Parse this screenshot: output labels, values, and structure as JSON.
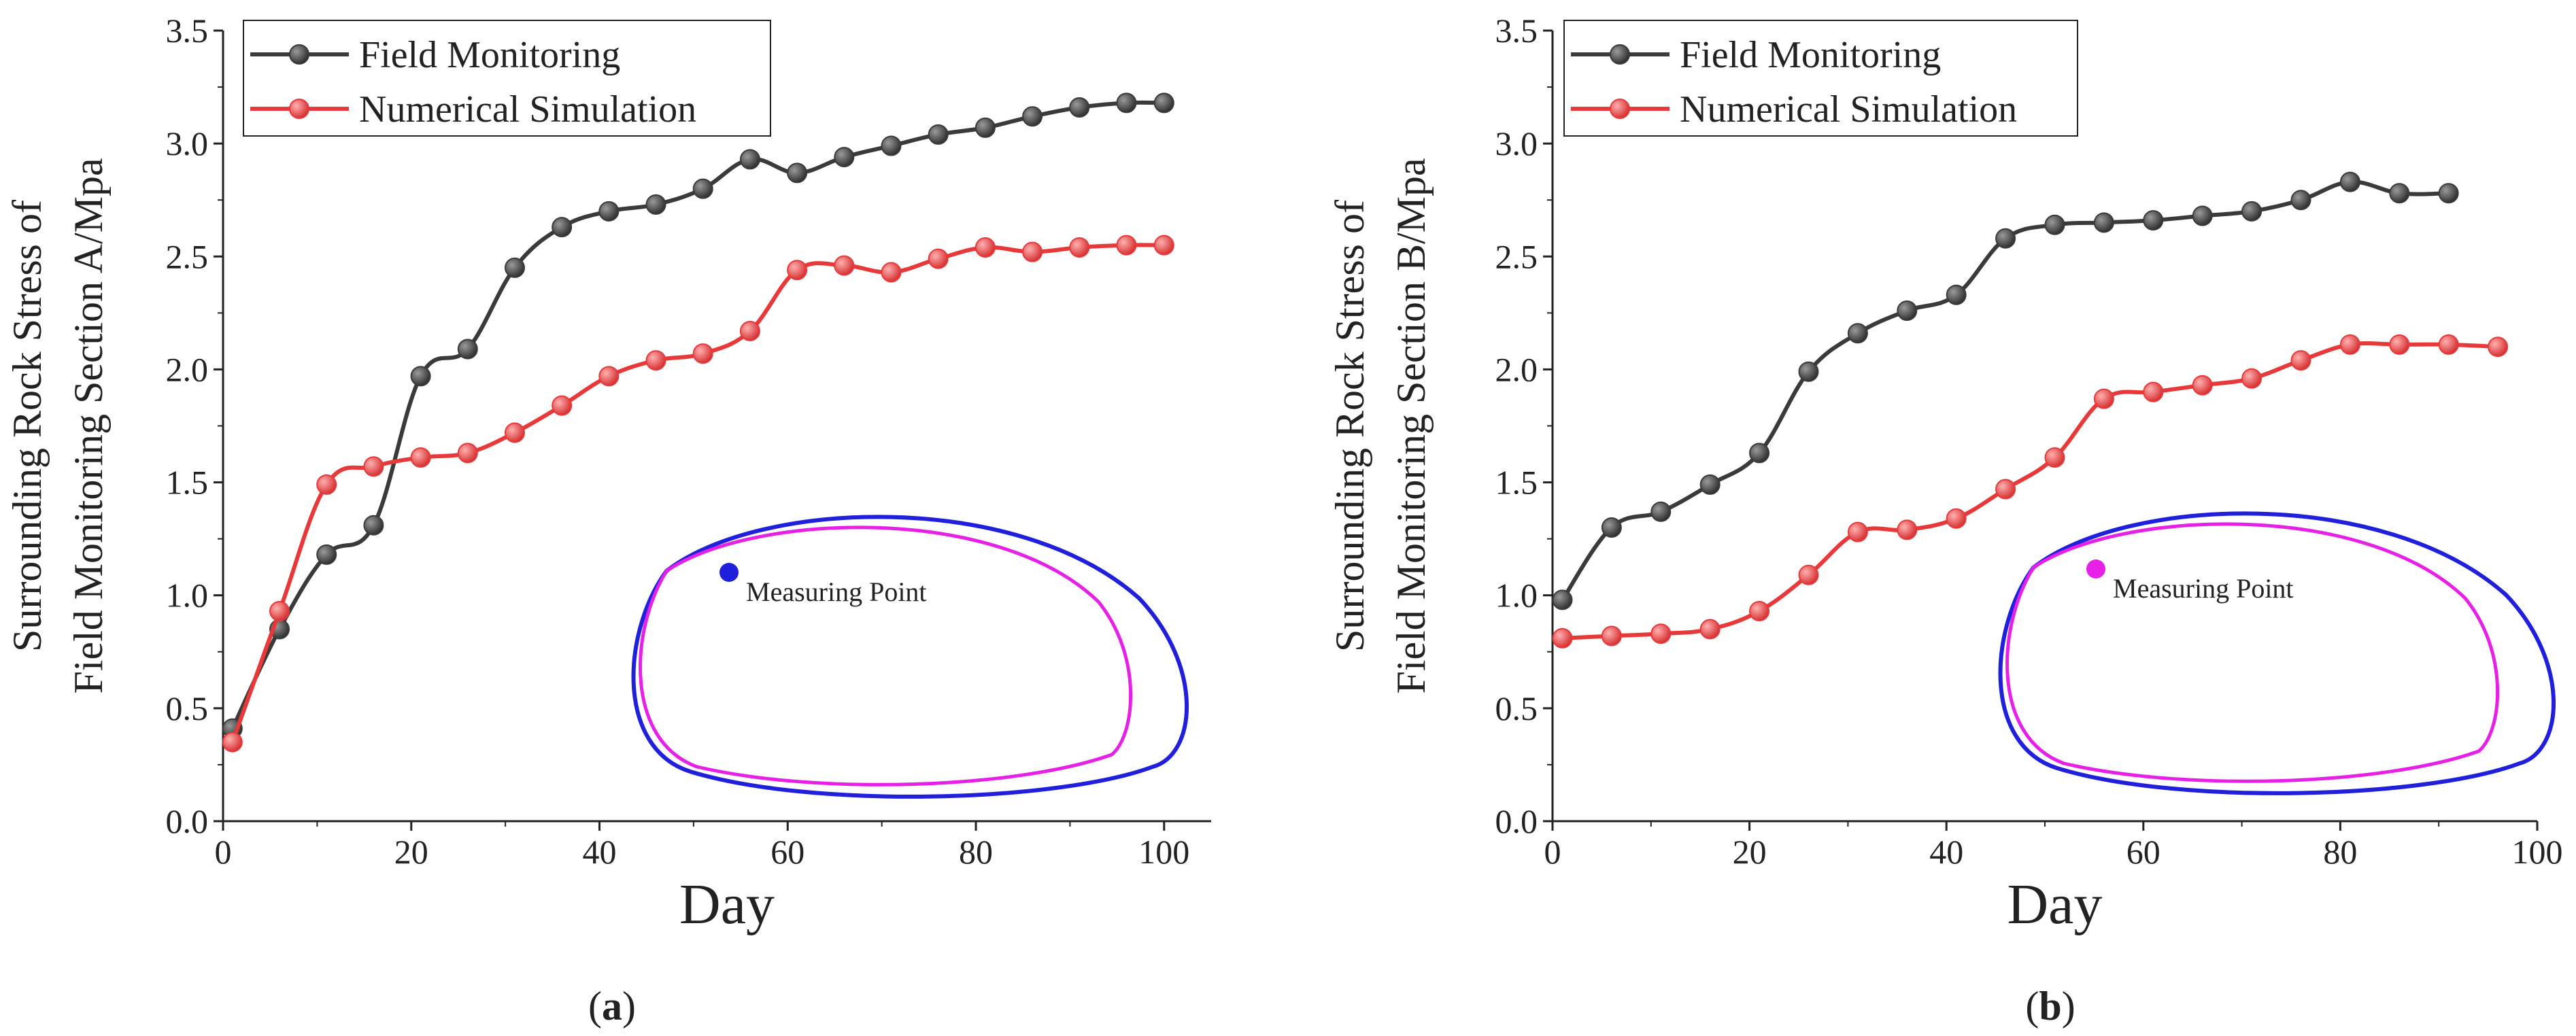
{
  "chart_data": [
    {
      "type": "line",
      "caption": "(a)",
      "caption_letter": "a",
      "xlabel": "Day",
      "ylabel_line1": "Surrounding Rock Stress of",
      "ylabel_line2": "Field Monitoring Section A/Mpa",
      "xlim": [
        0,
        105
      ],
      "ylim": [
        0,
        3.5
      ],
      "xticks": [
        "0",
        "20",
        "40",
        "60",
        "80",
        "100"
      ],
      "yticks": [
        "0.0",
        "0.5",
        "1.0",
        "1.5",
        "2.0",
        "2.5",
        "3.0",
        "3.5"
      ],
      "legend_position": "top-left",
      "series": [
        {
          "name": "Field Monitoring",
          "color": "#3a3a3a",
          "x": [
            1,
            6,
            11,
            16,
            21,
            26,
            31,
            36,
            41,
            46,
            51,
            56,
            61,
            66,
            71,
            76,
            81,
            86,
            91,
            96,
            100
          ],
          "y": [
            0.41,
            0.85,
            1.18,
            1.31,
            1.97,
            2.09,
            2.45,
            2.63,
            2.7,
            2.73,
            2.8,
            2.93,
            2.87,
            2.94,
            2.99,
            3.04,
            3.07,
            3.12,
            3.16,
            3.18,
            3.18
          ]
        },
        {
          "name": "Numerical Simulation",
          "color": "#e8393a",
          "x": [
            1,
            6,
            11,
            16,
            21,
            26,
            31,
            36,
            41,
            46,
            51,
            56,
            61,
            66,
            71,
            76,
            81,
            86,
            91,
            96,
            100
          ],
          "y": [
            0.35,
            0.93,
            1.49,
            1.57,
            1.61,
            1.63,
            1.72,
            1.84,
            1.97,
            2.04,
            2.07,
            2.17,
            2.44,
            2.46,
            2.43,
            2.49,
            2.54,
            2.52,
            2.54,
            2.55,
            2.55
          ]
        }
      ],
      "inset": {
        "label": "Measuring Point",
        "outer_color": "#1f1fdc",
        "inner_color": "#e620e6",
        "point_color": "#1f1fdc"
      }
    },
    {
      "type": "line",
      "caption": "(b)",
      "caption_letter": "b",
      "xlabel": "Day",
      "ylabel_line1": "Surrounding Rock Stress of",
      "ylabel_line2": "Field Monitoring Section B/Mpa",
      "xlim": [
        0,
        100
      ],
      "ylim": [
        0,
        3.5
      ],
      "xticks": [
        "0",
        "20",
        "40",
        "60",
        "80",
        "100"
      ],
      "yticks": [
        "0.0",
        "0.5",
        "1.0",
        "1.5",
        "2.0",
        "2.5",
        "3.0",
        "3.5"
      ],
      "legend_position": "top-left",
      "series": [
        {
          "name": "Field Monitoring",
          "color": "#3a3a3a",
          "x": [
            1,
            6,
            11,
            16,
            21,
            26,
            31,
            36,
            41,
            46,
            51,
            56,
            61,
            66,
            71,
            76,
            81,
            86,
            91
          ],
          "y": [
            0.98,
            1.3,
            1.37,
            1.49,
            1.63,
            1.99,
            2.16,
            2.26,
            2.33,
            2.58,
            2.64,
            2.65,
            2.66,
            2.68,
            2.7,
            2.75,
            2.83,
            2.78,
            2.78
          ]
        },
        {
          "name": "Numerical Simulation",
          "color": "#e8393a",
          "x": [
            1,
            6,
            11,
            16,
            21,
            26,
            31,
            36,
            41,
            46,
            51,
            56,
            61,
            66,
            71,
            76,
            81,
            86,
            91,
            96
          ],
          "y": [
            0.81,
            0.82,
            0.83,
            0.85,
            0.93,
            1.09,
            1.28,
            1.29,
            1.34,
            1.47,
            1.61,
            1.87,
            1.9,
            1.93,
            1.96,
            2.04,
            2.11,
            2.11,
            2.11,
            2.1
          ]
        }
      ],
      "inset": {
        "label": "Measuring Point",
        "outer_color": "#1f1fdc",
        "inner_color": "#e620e6",
        "point_color": "#e620e6"
      }
    }
  ]
}
